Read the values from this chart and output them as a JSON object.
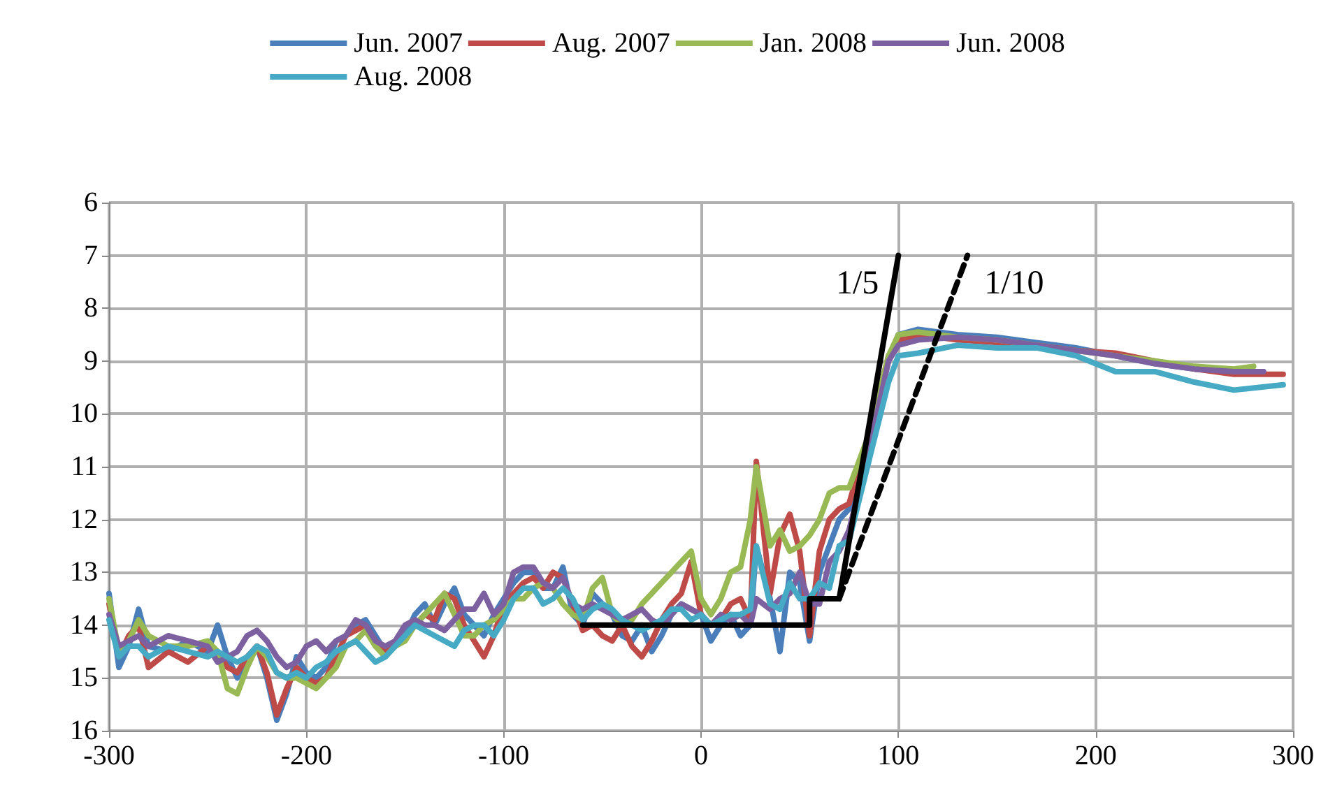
{
  "chart_data": {
    "type": "line",
    "xlim": [
      -300,
      300
    ],
    "xticks": [
      -300,
      -200,
      -100,
      0,
      100,
      200,
      300
    ],
    "ylim": [
      16,
      6
    ],
    "yticks": [
      6,
      7,
      8,
      9,
      10,
      11,
      12,
      13,
      14,
      15,
      16
    ],
    "grid": true,
    "legend": "top",
    "marker": "none",
    "series": [
      {
        "name": "Jun. 2007",
        "color": "#4a7ebb",
        "x": [
          -300,
          -295,
          -290,
          -285,
          -280,
          -270,
          -260,
          -250,
          -245,
          -240,
          -235,
          -230,
          -225,
          -220,
          -215,
          -210,
          -205,
          -200,
          -195,
          -190,
          -185,
          -180,
          -175,
          -170,
          -165,
          -160,
          -155,
          -150,
          -145,
          -140,
          -135,
          -130,
          -125,
          -120,
          -115,
          -110,
          -105,
          -100,
          -95,
          -90,
          -85,
          -80,
          -75,
          -70,
          -65,
          -60,
          -55,
          -50,
          -45,
          -40,
          -35,
          -30,
          -25,
          -20,
          -15,
          -10,
          -5,
          0,
          5,
          10,
          15,
          20,
          25,
          28,
          35,
          40,
          45,
          50,
          55,
          60,
          65,
          70,
          75,
          85,
          95,
          100,
          110,
          130,
          150,
          170,
          190,
          210,
          230,
          250,
          270,
          285
        ],
        "values": [
          13.4,
          14.8,
          14.4,
          13.7,
          14.4,
          14.5,
          14.3,
          14.5,
          14.0,
          14.6,
          15.0,
          14.6,
          14.4,
          15.0,
          15.8,
          15.3,
          14.6,
          14.9,
          15.0,
          14.8,
          14.3,
          14.2,
          14.0,
          13.9,
          14.2,
          14.5,
          14.4,
          14.2,
          13.8,
          13.6,
          14.0,
          13.6,
          13.3,
          13.8,
          14.0,
          14.2,
          13.8,
          13.5,
          13.2,
          13.0,
          13.0,
          13.3,
          13.3,
          12.9,
          13.8,
          14.0,
          13.4,
          13.6,
          13.8,
          14.2,
          14.3,
          14.0,
          14.5,
          14.2,
          13.8,
          13.6,
          13.7,
          13.8,
          14.3,
          14.0,
          13.8,
          14.2,
          14.0,
          12.5,
          13.5,
          14.5,
          13.0,
          13.2,
          14.3,
          13.0,
          12.5,
          12.0,
          11.8,
          10.5,
          9.0,
          8.5,
          8.4,
          8.5,
          8.55,
          8.65,
          8.75,
          8.9,
          9.05,
          9.15,
          9.2,
          9.2
        ]
      },
      {
        "name": "Aug. 2007",
        "color": "#be4b48",
        "x": [
          -300,
          -295,
          -290,
          -285,
          -280,
          -270,
          -260,
          -250,
          -245,
          -240,
          -235,
          -230,
          -225,
          -220,
          -215,
          -210,
          -205,
          -200,
          -195,
          -190,
          -185,
          -180,
          -175,
          -170,
          -165,
          -160,
          -155,
          -150,
          -145,
          -140,
          -135,
          -130,
          -125,
          -120,
          -115,
          -110,
          -105,
          -100,
          -95,
          -90,
          -85,
          -80,
          -75,
          -70,
          -65,
          -60,
          -55,
          -50,
          -45,
          -40,
          -35,
          -30,
          -25,
          -20,
          -15,
          -10,
          -5,
          0,
          5,
          10,
          15,
          20,
          25,
          28,
          35,
          40,
          45,
          50,
          55,
          60,
          65,
          70,
          75,
          85,
          95,
          100,
          110,
          130,
          150,
          170,
          190,
          210,
          230,
          250,
          270,
          295
        ],
        "values": [
          13.6,
          14.6,
          14.2,
          14.0,
          14.8,
          14.5,
          14.7,
          14.4,
          14.5,
          14.8,
          14.9,
          14.6,
          14.4,
          14.9,
          15.7,
          15.2,
          14.8,
          15.0,
          15.1,
          15.0,
          14.6,
          14.2,
          14.1,
          14.0,
          14.3,
          14.5,
          14.4,
          14.2,
          14.0,
          13.8,
          13.9,
          13.4,
          13.5,
          14.0,
          14.3,
          14.6,
          14.2,
          13.6,
          13.4,
          13.2,
          13.1,
          13.3,
          13.0,
          13.1,
          13.6,
          14.1,
          14.0,
          14.2,
          14.3,
          14.0,
          14.4,
          14.6,
          14.3,
          13.9,
          13.6,
          13.4,
          12.8,
          13.8,
          14.0,
          13.9,
          13.6,
          13.5,
          13.9,
          10.9,
          13.4,
          12.3,
          11.9,
          12.6,
          14.2,
          12.6,
          12.0,
          11.8,
          11.7,
          10.4,
          8.9,
          8.6,
          8.5,
          8.6,
          8.65,
          8.7,
          8.8,
          8.85,
          9.0,
          9.15,
          9.25,
          9.25
        ]
      },
      {
        "name": "Jan. 2008",
        "color": "#98b954",
        "x": [
          -300,
          -295,
          -290,
          -285,
          -280,
          -270,
          -260,
          -250,
          -245,
          -240,
          -235,
          -230,
          -225,
          -220,
          -215,
          -210,
          -205,
          -200,
          -195,
          -190,
          -185,
          -180,
          -175,
          -170,
          -165,
          -160,
          -155,
          -150,
          -145,
          -140,
          -135,
          -130,
          -125,
          -120,
          -115,
          -110,
          -105,
          -100,
          -95,
          -90,
          -85,
          -80,
          -75,
          -70,
          -65,
          -60,
          -55,
          -50,
          -45,
          -40,
          -35,
          -30,
          -25,
          -20,
          -15,
          -10,
          -5,
          0,
          5,
          10,
          15,
          20,
          25,
          28,
          35,
          40,
          45,
          50,
          55,
          60,
          65,
          70,
          75,
          85,
          95,
          100,
          110,
          130,
          150,
          170,
          190,
          210,
          230,
          250,
          270,
          280
        ],
        "values": [
          13.5,
          14.5,
          14.3,
          13.9,
          14.2,
          14.4,
          14.4,
          14.3,
          14.5,
          15.2,
          15.3,
          14.8,
          14.4,
          14.6,
          14.9,
          15.0,
          15.0,
          15.1,
          15.2,
          15.0,
          14.8,
          14.4,
          14.3,
          14.1,
          14.4,
          14.6,
          14.4,
          14.3,
          14.0,
          13.8,
          13.6,
          13.4,
          13.8,
          14.2,
          14.2,
          14.0,
          13.9,
          13.7,
          13.5,
          13.5,
          13.3,
          13.2,
          13.3,
          13.6,
          13.8,
          13.9,
          13.3,
          13.1,
          13.8,
          14.0,
          13.9,
          13.6,
          13.4,
          13.2,
          13.0,
          12.8,
          12.6,
          13.5,
          13.8,
          13.5,
          13.0,
          12.9,
          12.0,
          11.0,
          12.5,
          12.2,
          12.6,
          12.5,
          12.3,
          12.0,
          11.5,
          11.4,
          11.4,
          10.4,
          8.9,
          8.5,
          8.45,
          8.55,
          8.6,
          8.7,
          8.8,
          8.9,
          9.0,
          9.1,
          9.15,
          9.1
        ]
      },
      {
        "name": "Jun. 2008",
        "color": "#7d60a0",
        "x": [
          -300,
          -295,
          -290,
          -285,
          -280,
          -270,
          -260,
          -250,
          -245,
          -240,
          -235,
          -230,
          -225,
          -220,
          -215,
          -210,
          -205,
          -200,
          -195,
          -190,
          -185,
          -180,
          -175,
          -170,
          -165,
          -160,
          -155,
          -150,
          -145,
          -140,
          -135,
          -130,
          -125,
          -120,
          -115,
          -110,
          -105,
          -100,
          -95,
          -90,
          -85,
          -80,
          -75,
          -70,
          -65,
          -60,
          -55,
          -50,
          -45,
          -40,
          -35,
          -30,
          -25,
          -20,
          -15,
          -10,
          -5,
          0,
          5,
          10,
          15,
          20,
          25,
          28,
          35,
          40,
          45,
          50,
          55,
          60,
          65,
          70,
          75,
          85,
          95,
          100,
          110,
          130,
          150,
          170,
          190,
          210,
          230,
          250,
          270,
          285
        ],
        "values": [
          13.8,
          14.4,
          14.3,
          14.2,
          14.4,
          14.2,
          14.3,
          14.4,
          14.7,
          14.6,
          14.5,
          14.2,
          14.1,
          14.3,
          14.6,
          14.8,
          14.7,
          14.4,
          14.3,
          14.5,
          14.3,
          14.2,
          13.9,
          14.0,
          14.3,
          14.4,
          14.3,
          14.0,
          13.9,
          14.0,
          14.0,
          14.1,
          13.9,
          13.7,
          13.7,
          13.4,
          13.8,
          13.6,
          13.0,
          12.9,
          12.9,
          13.2,
          13.3,
          13.1,
          13.6,
          13.7,
          13.6,
          13.7,
          13.8,
          13.9,
          13.8,
          13.7,
          13.9,
          14.0,
          13.8,
          13.6,
          13.7,
          13.8,
          14.0,
          13.8,
          13.9,
          13.8,
          14.0,
          13.5,
          13.7,
          13.5,
          13.4,
          13.0,
          13.6,
          13.6,
          12.8,
          12.6,
          12.2,
          10.7,
          9.0,
          8.7,
          8.6,
          8.55,
          8.6,
          8.7,
          8.8,
          8.9,
          9.05,
          9.15,
          9.2,
          9.2
        ]
      },
      {
        "name": "Aug. 2008",
        "color": "#46aac5",
        "x": [
          -300,
          -295,
          -290,
          -285,
          -280,
          -270,
          -260,
          -250,
          -245,
          -240,
          -235,
          -230,
          -225,
          -220,
          -215,
          -210,
          -205,
          -200,
          -195,
          -190,
          -185,
          -180,
          -175,
          -170,
          -165,
          -160,
          -155,
          -150,
          -145,
          -140,
          -135,
          -130,
          -125,
          -120,
          -115,
          -110,
          -105,
          -100,
          -95,
          -90,
          -85,
          -80,
          -75,
          -70,
          -65,
          -60,
          -55,
          -50,
          -45,
          -40,
          -35,
          -30,
          -25,
          -20,
          -15,
          -10,
          -5,
          0,
          5,
          10,
          15,
          20,
          25,
          28,
          35,
          40,
          45,
          50,
          55,
          60,
          65,
          70,
          75,
          85,
          95,
          100,
          110,
          130,
          150,
          170,
          190,
          210,
          230,
          250,
          270,
          295
        ],
        "values": [
          13.9,
          14.6,
          14.4,
          14.4,
          14.6,
          14.4,
          14.5,
          14.6,
          14.5,
          14.6,
          14.7,
          14.6,
          14.4,
          14.5,
          14.9,
          15.0,
          14.9,
          15.0,
          14.8,
          14.7,
          14.5,
          14.4,
          14.3,
          14.5,
          14.7,
          14.6,
          14.4,
          14.2,
          14.0,
          14.1,
          14.2,
          14.3,
          14.4,
          14.1,
          14.0,
          14.0,
          14.2,
          13.9,
          13.5,
          13.3,
          13.3,
          13.6,
          13.5,
          13.3,
          13.5,
          13.9,
          13.7,
          13.6,
          13.7,
          13.9,
          14.0,
          14.1,
          14.0,
          13.9,
          13.7,
          13.7,
          13.9,
          13.8,
          14.0,
          13.9,
          13.8,
          13.8,
          13.7,
          12.5,
          13.6,
          13.7,
          13.2,
          13.5,
          13.5,
          13.2,
          13.3,
          12.5,
          12.4,
          10.9,
          9.4,
          8.9,
          8.85,
          8.7,
          8.75,
          8.75,
          8.9,
          9.2,
          9.2,
          9.4,
          9.55,
          9.45
        ]
      },
      {
        "color": "#000000",
        "line_style": "solid",
        "x": [
          -60,
          55,
          55,
          70,
          100
        ],
        "values": [
          14,
          14,
          13.5,
          13.5,
          7
        ]
      },
      {
        "color": "#000000",
        "line_style": "dashed",
        "x": [
          70,
          135
        ],
        "values": [
          13.5,
          7
        ]
      }
    ],
    "annotations": [
      {
        "text": "1/5",
        "x": 100,
        "y": 7
      },
      {
        "text": "1/10",
        "x": 135,
        "y": 7
      }
    ]
  }
}
